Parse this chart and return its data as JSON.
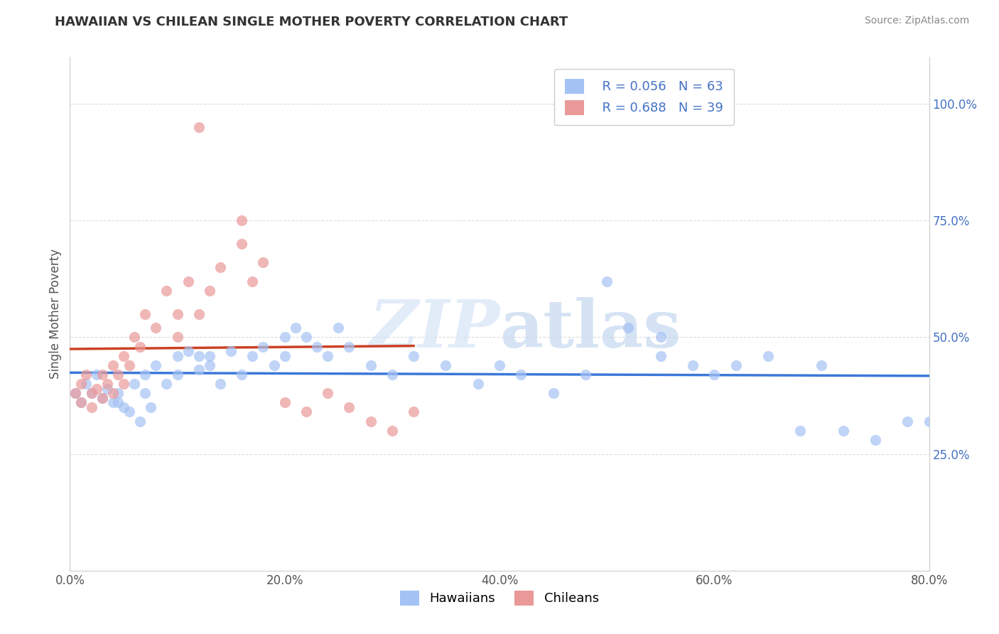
{
  "title": "HAWAIIAN VS CHILEAN SINGLE MOTHER POVERTY CORRELATION CHART",
  "source": "Source: ZipAtlas.com",
  "ylabel": "Single Mother Poverty",
  "xlim": [
    0.0,
    0.8
  ],
  "ylim": [
    0.0,
    1.1
  ],
  "xtick_labels": [
    "0.0%",
    "20.0%",
    "40.0%",
    "60.0%",
    "80.0%"
  ],
  "xtick_vals": [
    0.0,
    0.2,
    0.4,
    0.6,
    0.8
  ],
  "ytick_labels_right": [
    "25.0%",
    "50.0%",
    "75.0%",
    "100.0%"
  ],
  "ytick_vals_right": [
    0.25,
    0.5,
    0.75,
    1.0
  ],
  "hawaiian_color": "#a4c2f4",
  "chilean_color": "#ea9999",
  "trendline_hawaiian_color": "#3c78d8",
  "trendline_chilean_color": "#cc4125",
  "watermark_color": "#c9daf8",
  "legend_R_hawaiian": "R = 0.056",
  "legend_N_hawaiian": "N = 63",
  "legend_R_chilean": "R = 0.688",
  "legend_N_chilean": "N = 39",
  "hawaiian_x": [
    0.005,
    0.01,
    0.015,
    0.02,
    0.025,
    0.03,
    0.035,
    0.04,
    0.045,
    0.05,
    0.06,
    0.07,
    0.07,
    0.08,
    0.09,
    0.1,
    0.1,
    0.11,
    0.12,
    0.12,
    0.13,
    0.13,
    0.14,
    0.15,
    0.16,
    0.17,
    0.18,
    0.19,
    0.2,
    0.2,
    0.21,
    0.22,
    0.23,
    0.24,
    0.25,
    0.26,
    0.28,
    0.3,
    0.32,
    0.35,
    0.38,
    0.4,
    0.42,
    0.45,
    0.48,
    0.5,
    0.52,
    0.55,
    0.55,
    0.58,
    0.6,
    0.62,
    0.65,
    0.68,
    0.7,
    0.72,
    0.75,
    0.78,
    0.8,
    0.045,
    0.055,
    0.065,
    0.075
  ],
  "hawaiian_y": [
    0.38,
    0.36,
    0.4,
    0.38,
    0.42,
    0.37,
    0.39,
    0.36,
    0.38,
    0.35,
    0.4,
    0.38,
    0.42,
    0.44,
    0.4,
    0.46,
    0.42,
    0.47,
    0.46,
    0.43,
    0.46,
    0.44,
    0.4,
    0.47,
    0.42,
    0.46,
    0.48,
    0.44,
    0.5,
    0.46,
    0.52,
    0.5,
    0.48,
    0.46,
    0.52,
    0.48,
    0.44,
    0.42,
    0.46,
    0.44,
    0.4,
    0.44,
    0.42,
    0.38,
    0.42,
    0.62,
    0.52,
    0.46,
    0.5,
    0.44,
    0.42,
    0.44,
    0.46,
    0.3,
    0.44,
    0.3,
    0.28,
    0.32,
    0.32,
    0.36,
    0.34,
    0.32,
    0.35
  ],
  "chilean_x": [
    0.005,
    0.01,
    0.01,
    0.015,
    0.02,
    0.02,
    0.025,
    0.03,
    0.03,
    0.035,
    0.04,
    0.04,
    0.045,
    0.05,
    0.05,
    0.055,
    0.06,
    0.065,
    0.07,
    0.08,
    0.09,
    0.1,
    0.1,
    0.11,
    0.12,
    0.13,
    0.14,
    0.16,
    0.16,
    0.17,
    0.18,
    0.2,
    0.22,
    0.24,
    0.26,
    0.28,
    0.3,
    0.32,
    0.12
  ],
  "chilean_y": [
    0.38,
    0.36,
    0.4,
    0.42,
    0.38,
    0.35,
    0.39,
    0.37,
    0.42,
    0.4,
    0.38,
    0.44,
    0.42,
    0.46,
    0.4,
    0.44,
    0.5,
    0.48,
    0.55,
    0.52,
    0.6,
    0.5,
    0.55,
    0.62,
    0.55,
    0.6,
    0.65,
    0.7,
    0.75,
    0.62,
    0.66,
    0.36,
    0.34,
    0.38,
    0.35,
    0.32,
    0.3,
    0.34,
    0.95
  ]
}
